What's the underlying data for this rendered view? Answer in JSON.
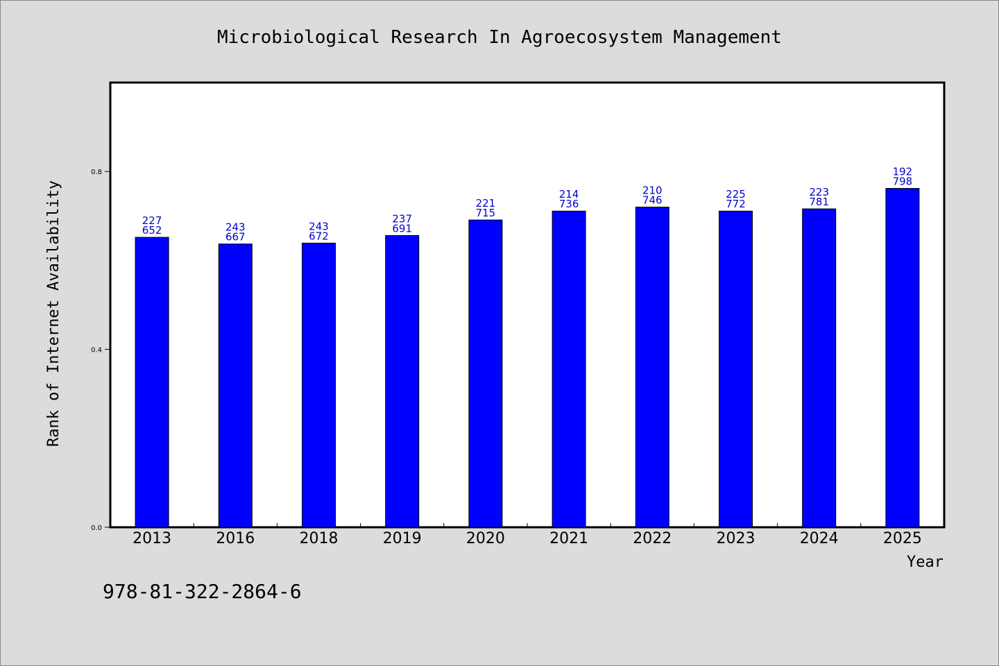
{
  "chart_data": {
    "type": "bar",
    "title": "Microbiological Research In Agroecosystem Management",
    "xlabel": "Year",
    "ylabel": "Rank of Internet Availability",
    "categories": [
      "2013",
      "2016",
      "2018",
      "2019",
      "2020",
      "2021",
      "2022",
      "2023",
      "2024",
      "2025"
    ],
    "values": [
      0.652,
      0.637,
      0.639,
      0.656,
      0.691,
      0.711,
      0.72,
      0.711,
      0.716,
      0.762
    ],
    "labels_top": [
      "227",
      "243",
      "243",
      "237",
      "221",
      "214",
      "210",
      "225",
      "223",
      "192"
    ],
    "labels_bottom": [
      "652",
      "667",
      "672",
      "691",
      "715",
      "736",
      "746",
      "772",
      "781",
      "798"
    ],
    "ylim": [
      0,
      1.0
    ],
    "yticks": [
      "0.0",
      "0.4",
      "0.8"
    ],
    "ytick_values": [
      0.0,
      0.4,
      0.8
    ],
    "grid": false,
    "bar_color": "#0000ff",
    "label_color": "#0000cc"
  },
  "footer": {
    "isbn": "978-81-322-2864-6"
  },
  "colors": {
    "background": "#dcdcdc",
    "plot_background": "#ffffff"
  }
}
